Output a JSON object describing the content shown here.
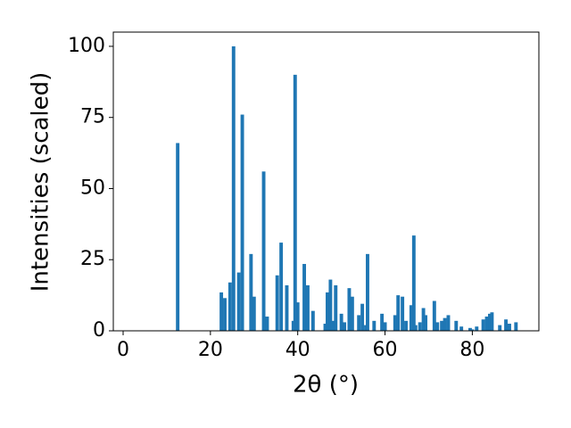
{
  "chart_data": {
    "type": "bar",
    "xlabel": "2θ (°)",
    "ylabel": "Intensities (scaled)",
    "x": [
      12.5,
      22.5,
      23.3,
      24.5,
      25.3,
      26.5,
      27.3,
      29.3,
      30,
      32.2,
      33,
      35.3,
      36.2,
      37.5,
      39,
      39.4,
      40,
      41.5,
      42.3,
      43.5,
      46.3,
      46.8,
      47.5,
      48,
      48.7,
      50,
      50.7,
      51.8,
      52.5,
      54,
      54.8,
      55.6,
      56,
      57.5,
      59.3,
      60,
      62.3,
      63,
      64,
      64.8,
      66,
      66.6,
      67,
      68,
      68.8,
      69.3,
      71.3,
      72,
      73,
      73.7,
      74.5,
      76.3,
      77.5,
      79.5,
      80,
      81,
      82.5,
      83.3,
      84,
      84.5,
      86.3,
      87.7,
      88.5,
      90
    ],
    "values": [
      66,
      13.5,
      11.5,
      17,
      100,
      20.5,
      76,
      27,
      12,
      56,
      5,
      19.5,
      31,
      16,
      3.5,
      90,
      10,
      23.5,
      16,
      7,
      2.5,
      13.5,
      18,
      3.5,
      16,
      6,
      3,
      15,
      12,
      5.5,
      9.5,
      2,
      27,
      3.5,
      6,
      3,
      5.5,
      12.5,
      12,
      3.5,
      9,
      33.5,
      2,
      3,
      8,
      5.5,
      10.5,
      3,
      3.5,
      4.5,
      5.5,
      3.5,
      1.5,
      1,
      0.5,
      1.5,
      4,
      5,
      6,
      6.5,
      2,
      4,
      2.5,
      3
    ],
    "color": "#1f77b4",
    "xlim": [
      -2.25,
      95.25
    ],
    "xticks": [
      0,
      20,
      40,
      60,
      80
    ],
    "ylim": [
      0,
      105
    ],
    "yticks": [
      0,
      25,
      50,
      75,
      100
    ],
    "grid": false
  }
}
